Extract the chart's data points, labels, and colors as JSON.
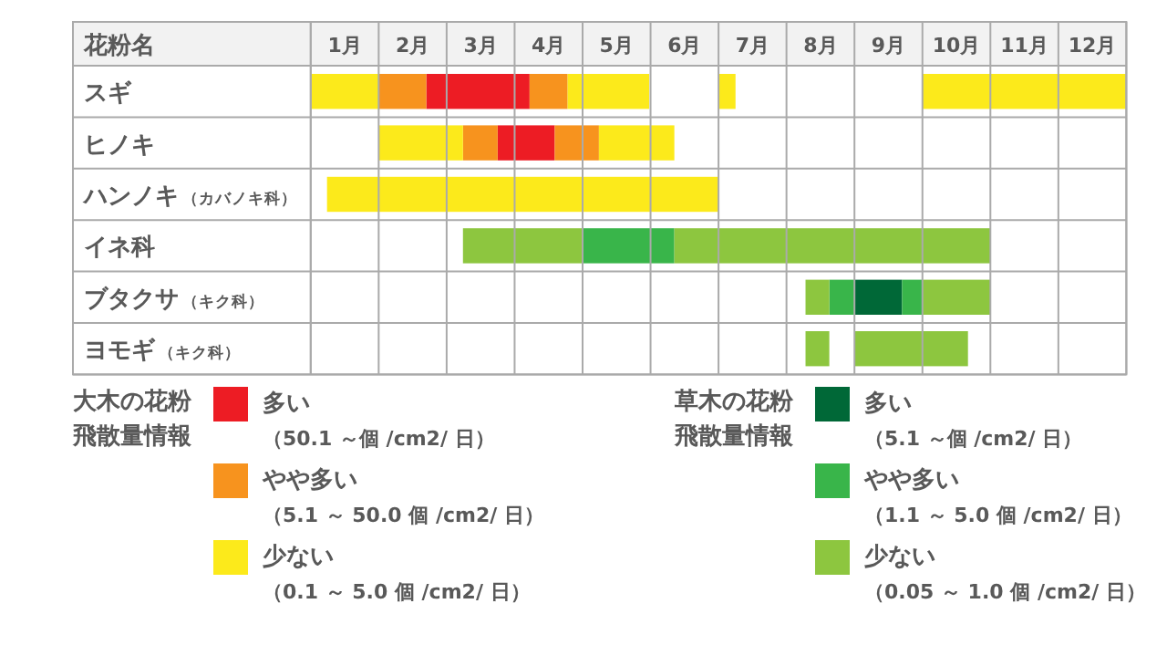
{
  "chart_data": {
    "type": "bar",
    "orientation": "horizontal",
    "ylabel": "花粉名",
    "categories": [
      "スギ",
      "ヒノキ",
      "ハンノキ（カバノキ科）",
      "イネ科",
      "ブタクサ（キク科）",
      "ヨモギ（キク科）"
    ],
    "xlim": [
      0,
      12
    ],
    "xticks": [
      {
        "value": 0,
        "label": null
      },
      {
        "value": 0.5,
        "label": "1月"
      },
      {
        "value": 1,
        "label": null
      },
      {
        "value": 1.5,
        "label": "2月"
      },
      {
        "value": 2,
        "label": null
      },
      {
        "value": 2.5,
        "label": "3月"
      },
      {
        "value": 3,
        "label": null
      },
      {
        "value": 3.5,
        "label": "4月"
      },
      {
        "value": 4,
        "label": null
      },
      {
        "value": 4.5,
        "label": "5月"
      },
      {
        "value": 5,
        "label": null
      },
      {
        "value": 5.5,
        "label": "6月"
      },
      {
        "value": 6,
        "label": null
      },
      {
        "value": 6.5,
        "label": "7月"
      },
      {
        "value": 7,
        "label": null
      },
      {
        "value": 7.5,
        "label": "8月"
      },
      {
        "value": 8,
        "label": null
      },
      {
        "value": 8.5,
        "label": "9月"
      },
      {
        "value": 9,
        "label": null
      },
      {
        "value": 9.5,
        "label": "10月"
      },
      {
        "value": 10,
        "label": null
      },
      {
        "value": 10.5,
        "label": "11月"
      },
      {
        "value": 11,
        "label": null
      },
      {
        "value": 11.5,
        "label": "12月"
      },
      {
        "value": 12,
        "label": null
      }
    ],
    "grid": true,
    "legend": "bottom",
    "legend_title": [
      "大木の花粉飛散量情報",
      "草木の花粉飛散量情報"
    ],
    "series": [
      {
        "name": "多い（50.1 ～個 /cm2/ 日）",
        "color": "#ed1c24",
        "base": [
          1.7,
          2.75,
          null,
          null,
          null,
          null
        ],
        "values": [
          1.52,
          0.84,
          null,
          null,
          null,
          null
        ]
      },
      {
        "name": "やや多い（5.1 ～ 50.0 個 /cm2/ 日）",
        "color": "#f7931e",
        "base": [
          1.0,
          2.24,
          null,
          null,
          null,
          null
        ],
        "values": [
          0.7,
          0.51,
          null,
          null,
          null,
          null
        ]
      },
      {
        "name": "少ない（0.1 ～ 5.0 個 /cm2/ 日）",
        "color": "#fcea1b",
        "base": [
          0,
          1.0,
          0.24,
          null,
          null,
          null
        ],
        "values": [
          1.0,
          1.24,
          5.76,
          null,
          null,
          null
        ]
      },
      {
        "name": "多い（5.1 ～個 /cm2/ 日）",
        "color": "#006837",
        "base": [
          null,
          null,
          null,
          null,
          8.0,
          null
        ],
        "values": [
          null,
          null,
          null,
          null,
          0.7,
          null
        ]
      },
      {
        "name": "やや多い（1.1 ～ 5.0 個 /cm2/ 日）",
        "color": "#39b54a",
        "base": [
          null,
          null,
          null,
          4.0,
          7.63,
          null
        ],
        "values": [
          null,
          null,
          null,
          1.35,
          0.37,
          null
        ]
      },
      {
        "name": "少ない（0.05 ～ 1.0 個 /cm2/ 日）",
        "color": "#8dc63f",
        "base": [
          null,
          null,
          null,
          2.24,
          7.28,
          7.28
        ],
        "values": [
          null,
          null,
          null,
          1.76,
          0.35,
          0.35
        ]
      },
      {
        "color": "#f7931e",
        "base": [
          3.22,
          3.59,
          null,
          null,
          null,
          null
        ],
        "values": [
          0.56,
          0.65,
          null,
          null,
          null,
          null
        ]
      },
      {
        "color": "#fcea1b",
        "base": [
          3.78,
          4.24,
          null,
          null,
          null,
          null
        ],
        "values": [
          1.2,
          1.11,
          null,
          null,
          null,
          null
        ]
      },
      {
        "color": "#fcea1b",
        "base": [
          6.0,
          null,
          null,
          null,
          null,
          null
        ],
        "values": [
          0.25,
          null,
          null,
          null,
          null,
          null
        ]
      },
      {
        "color": "#fcea1b",
        "base": [
          9.0,
          null,
          null,
          null,
          null,
          null
        ],
        "values": [
          3.0,
          null,
          null,
          null,
          null,
          null
        ]
      },
      {
        "color": "#39b54a",
        "base": [
          null,
          null,
          null,
          null,
          8.7,
          null
        ],
        "values": [
          null,
          null,
          null,
          null,
          0.3,
          null
        ]
      },
      {
        "color": "#8dc63f",
        "base": [
          null,
          null,
          null,
          5.35,
          9.0,
          8.0
        ],
        "values": [
          null,
          null,
          null,
          4.65,
          1.0,
          1.67
        ]
      }
    ]
  }
}
